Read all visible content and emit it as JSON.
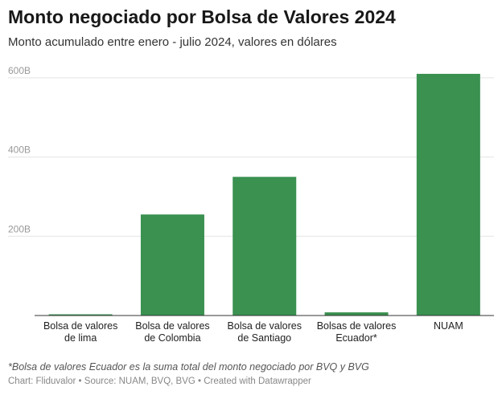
{
  "header": {
    "title": "Monto negociado por Bolsa de Valores 2024",
    "subtitle": "Monto acumulado entre enero - julio 2024, valores en dólares"
  },
  "footer": {
    "note": "*Bolsa de valores Ecuador es la suma total del monto negociado por BVQ y BVG",
    "credits": "Chart: Fliduvalor  • Source: NUAM, BVQ, BVG • Created with Datawrapper"
  },
  "chart_data": {
    "type": "bar",
    "title": "Monto negociado por Bolsa de Valores 2024",
    "categories": [
      [
        "Bolsa de valores",
        "de lima"
      ],
      [
        "Bolsa de valores",
        "de Colombia"
      ],
      [
        "Bolsa de valores",
        "de Santiago"
      ],
      [
        "Bolsas de valores",
        "Ecuador*"
      ],
      [
        "NUAM"
      ]
    ],
    "values": [
      3,
      255,
      350,
      8,
      610
    ],
    "unit": "B",
    "yticks": [
      200,
      400,
      600
    ],
    "ytick_labels": [
      "200B",
      "400B",
      "600B"
    ],
    "ylim": [
      0,
      620
    ],
    "grid": true,
    "bar_color": "#3a9150"
  }
}
